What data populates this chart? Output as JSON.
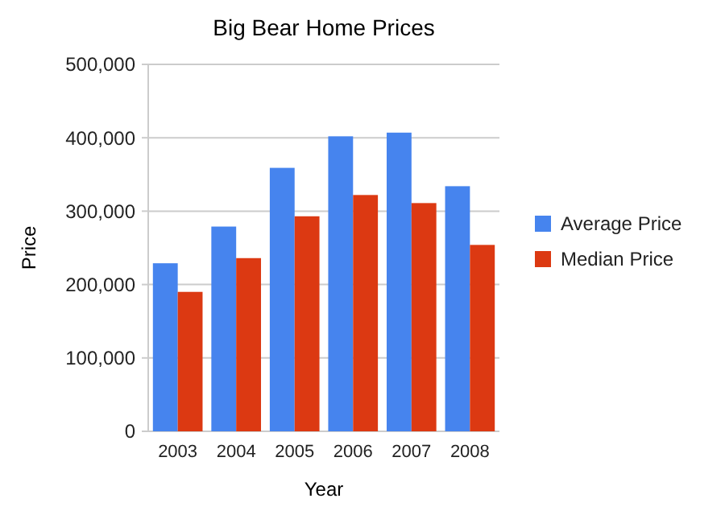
{
  "chart_data": {
    "type": "bar",
    "title": "Big Bear Home Prices",
    "xlabel": "Year",
    "ylabel": "Price",
    "categories": [
      "2003",
      "2004",
      "2005",
      "2006",
      "2007",
      "2008"
    ],
    "series": [
      {
        "name": "Average Price",
        "color": "#4684ee",
        "values": [
          229000,
          279000,
          359000,
          402000,
          407000,
          334000
        ]
      },
      {
        "name": "Median Price",
        "color": "#dc3912",
        "values": [
          190000,
          236000,
          293000,
          322000,
          311000,
          254000
        ]
      }
    ],
    "ylim": [
      0,
      500000
    ],
    "yticks": [
      {
        "value": 0,
        "label": "0"
      },
      {
        "value": 100000,
        "label": "100,000"
      },
      {
        "value": 200000,
        "label": "200,000"
      },
      {
        "value": 300000,
        "label": "300,000"
      },
      {
        "value": 400000,
        "label": "400,000"
      },
      {
        "value": 500000,
        "label": "500,000"
      }
    ],
    "grid": "y",
    "legend": "right"
  }
}
